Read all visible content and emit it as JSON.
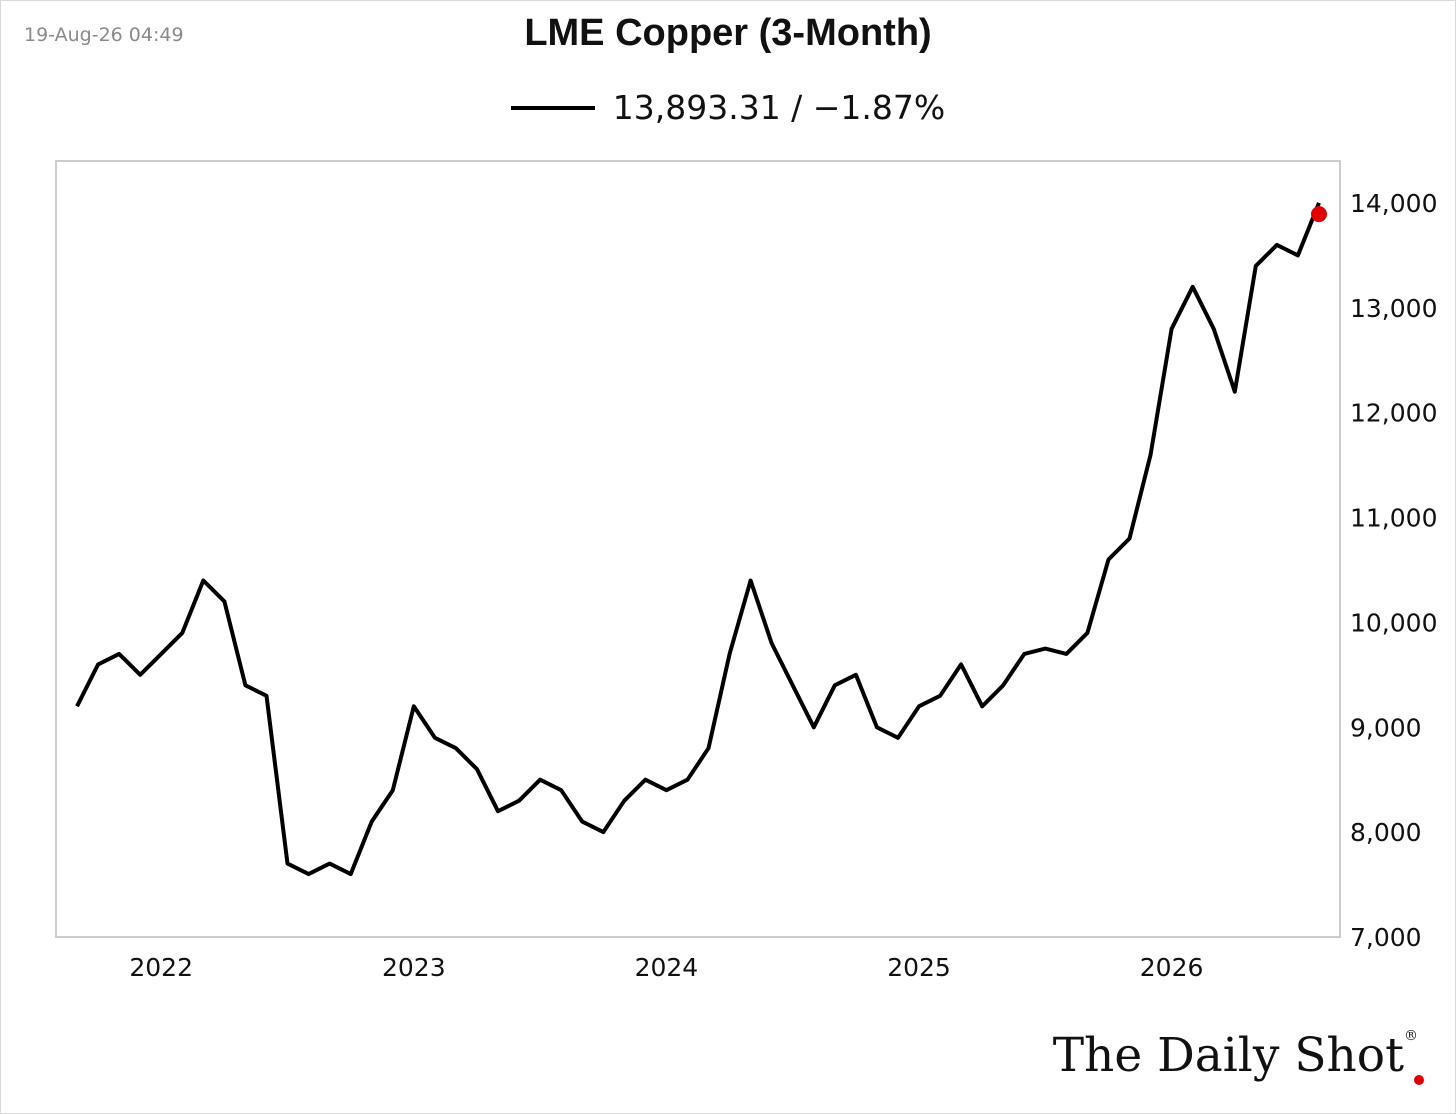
{
  "header": {
    "timestamp": "19-Aug-26 04:49"
  },
  "logo": {
    "text": "The Daily Shot",
    "mark": "®"
  },
  "colors": {
    "line": "#000000",
    "last_point": "#e10000",
    "plot_border": "#cccccc"
  },
  "chart_data": {
    "type": "line",
    "title": "LME Copper (3-Month)",
    "legend": {
      "placement": "top-center",
      "entry": "13,893.31 / −1.87%"
    },
    "series": [
      {
        "last_value": 13893.31,
        "change_pct": -1.87,
        "x": [
          "2021-09",
          "2021-10",
          "2021-11",
          "2021-12",
          "2022-01",
          "2022-02",
          "2022-03",
          "2022-04",
          "2022-05",
          "2022-06",
          "2022-07",
          "2022-08",
          "2022-09",
          "2022-10",
          "2022-11",
          "2022-12",
          "2023-01",
          "2023-02",
          "2023-03",
          "2023-04",
          "2023-05",
          "2023-06",
          "2023-07",
          "2023-08",
          "2023-09",
          "2023-10",
          "2023-11",
          "2023-12",
          "2024-01",
          "2024-02",
          "2024-03",
          "2024-04",
          "2024-05",
          "2024-06",
          "2024-07",
          "2024-08",
          "2024-09",
          "2024-10",
          "2024-11",
          "2024-12",
          "2025-01",
          "2025-02",
          "2025-03",
          "2025-04",
          "2025-05",
          "2025-06",
          "2025-07",
          "2025-08",
          "2025-09",
          "2025-10",
          "2025-11",
          "2025-12",
          "2026-01",
          "2026-02",
          "2026-03",
          "2026-04",
          "2026-05",
          "2026-06",
          "2026-07",
          "2026-08"
        ],
        "values": [
          9200,
          9600,
          9700,
          9500,
          9700,
          9900,
          10400,
          10200,
          9400,
          9300,
          7700,
          7600,
          7700,
          7600,
          8100,
          8400,
          9200,
          8900,
          8800,
          8600,
          8200,
          8300,
          8500,
          8400,
          8100,
          8000,
          8300,
          8500,
          8400,
          8500,
          8800,
          9700,
          10400,
          9800,
          9400,
          9000,
          9400,
          9500,
          9000,
          8900,
          9200,
          9300,
          9600,
          9200,
          9400,
          9700,
          9750,
          9700,
          9900,
          10600,
          10800,
          11600,
          12800,
          13200,
          12800,
          12200,
          13400,
          13600,
          13500,
          14000
        ]
      }
    ],
    "ylim": [
      7000,
      14400
    ],
    "yticks": [
      7000,
      8000,
      9000,
      10000,
      11000,
      12000,
      13000,
      14000
    ],
    "ytick_labels": [
      "7,000",
      "8,000",
      "9,000",
      "10,000",
      "11,000",
      "12,000",
      "13,000",
      "14,000"
    ],
    "xticks": [
      "2022",
      "2023",
      "2024",
      "2025",
      "2026"
    ],
    "xtick_dates": [
      "2022-01",
      "2023-01",
      "2024-01",
      "2025-01",
      "2026-01"
    ],
    "xlim": [
      "2021-08",
      "2026-09"
    ],
    "y_axis_side": "right",
    "grid": false
  }
}
